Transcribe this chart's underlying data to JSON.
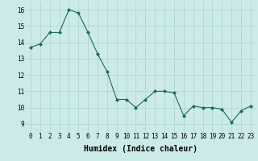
{
  "x": [
    0,
    1,
    2,
    3,
    4,
    5,
    6,
    7,
    8,
    9,
    10,
    11,
    12,
    13,
    14,
    15,
    16,
    17,
    18,
    19,
    20,
    21,
    22,
    23
  ],
  "y": [
    13.7,
    13.9,
    14.6,
    14.6,
    16.0,
    15.8,
    14.6,
    13.3,
    12.2,
    10.5,
    10.5,
    10.0,
    10.5,
    11.0,
    11.0,
    10.9,
    9.5,
    10.1,
    10.0,
    10.0,
    9.9,
    9.1,
    9.8,
    10.1
  ],
  "line_color": "#1a6b5a",
  "marker": "D",
  "marker_size": 2.0,
  "bg_color": "#cceae7",
  "grid_color": "#aad4d0",
  "xlabel": "Humidex (Indice chaleur)",
  "xlabel_fontsize": 7,
  "tick_fontsize": 5.5,
  "ylabel_ticks": [
    9,
    10,
    11,
    12,
    13,
    14,
    15,
    16
  ],
  "xtick_labels": [
    "0",
    "1",
    "2",
    "3",
    "4",
    "5",
    "6",
    "7",
    "8",
    "9",
    "10",
    "11",
    "12",
    "13",
    "14",
    "15",
    "16",
    "17",
    "18",
    "19",
    "20",
    "21",
    "22",
    "23"
  ],
  "ylim": [
    8.5,
    16.5
  ],
  "xlim": [
    -0.5,
    23.5
  ]
}
